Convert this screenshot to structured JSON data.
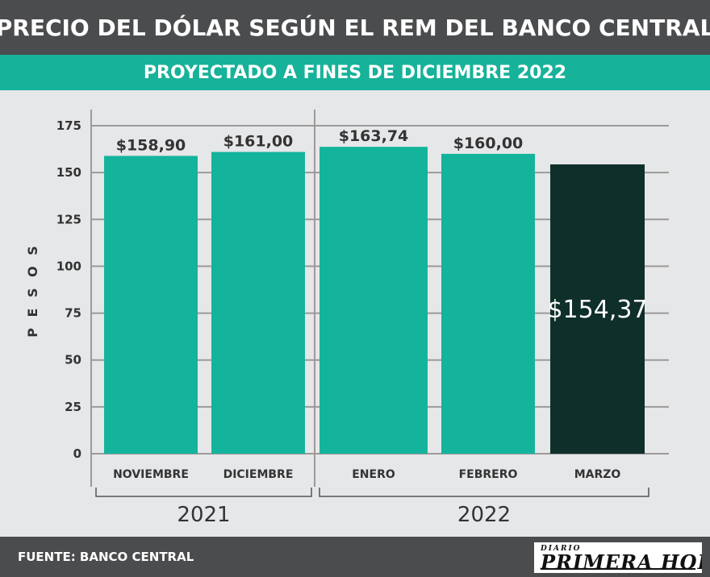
{
  "header": {
    "title": "PRECIO DEL DÓLAR SEGÚN EL REM DEL BANCO CENTRAL"
  },
  "subheader": {
    "title": "PROYECTADO A FINES DE DICIEMBRE 2022"
  },
  "footer": {
    "source": "FUENTE: BANCO CENTRAL",
    "logo_top": "DIARIO",
    "logo_main": "PRIMERA HORA"
  },
  "colors": {
    "header_bg": "#4b4c4e",
    "subheader_bg": "#17b29a",
    "bar": "#14b49c",
    "bar_highlight": "#0f2f2a",
    "background": "#e6e7e9",
    "grid": "#9c9a99",
    "text": "#333333"
  },
  "chart_data": {
    "type": "bar",
    "ylabel": "P E S O S",
    "ylim": [
      0,
      175
    ],
    "yticks": [
      0,
      25,
      50,
      75,
      100,
      125,
      150,
      175
    ],
    "grid": true,
    "categories": [
      "NOVIEMBRE",
      "DICIEMBRE",
      "ENERO",
      "FEBRERO",
      "MARZO"
    ],
    "values": [
      158.9,
      161.0,
      163.74,
      160.0,
      154.37
    ],
    "value_labels": [
      "$158,90",
      "$161,00",
      "$163,74",
      "$160,00",
      "$154,37"
    ],
    "highlight_index": 4,
    "groups": [
      {
        "label": "2021",
        "categories": [
          "NOVIEMBRE",
          "DICIEMBRE"
        ]
      },
      {
        "label": "2022",
        "categories": [
          "ENERO",
          "FEBRERO",
          "MARZO"
        ]
      }
    ]
  }
}
